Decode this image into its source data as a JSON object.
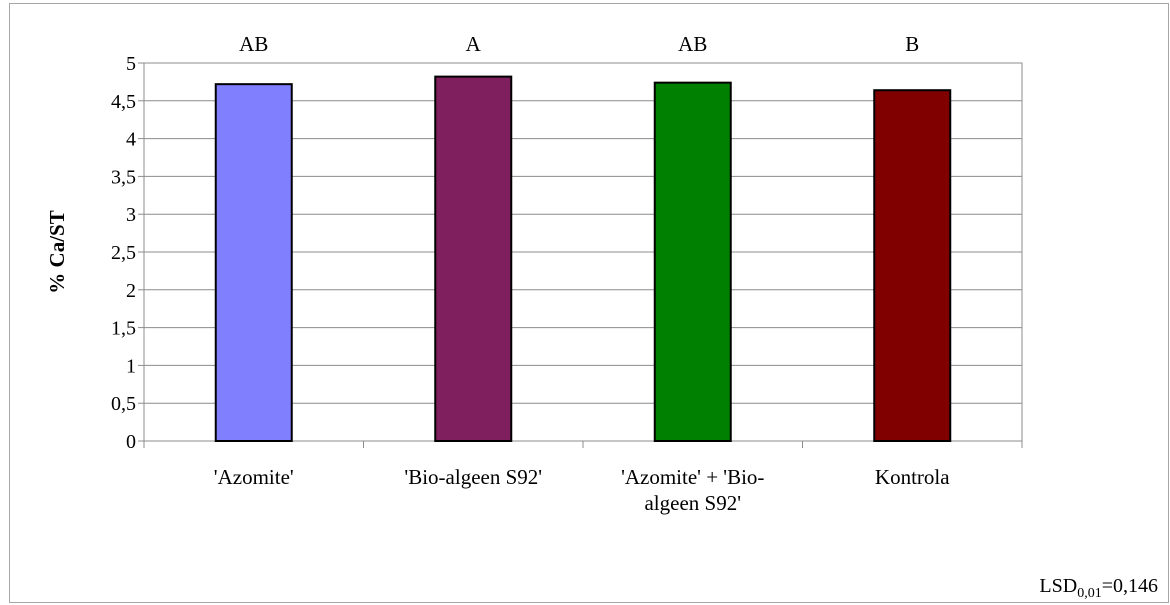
{
  "chart_data": {
    "type": "bar",
    "categories": [
      "'Azomite'",
      "'Bio-algeen S92'",
      "'Azomite' + 'Bio-algeen S92'",
      "Kontrola"
    ],
    "category_label_lines": [
      [
        "'Azomite'"
      ],
      [
        "'Bio-algeen S92'"
      ],
      [
        "'Azomite' + 'Bio-",
        "algeen S92'"
      ],
      [
        "Kontrola"
      ]
    ],
    "values": [
      4.72,
      4.82,
      4.74,
      4.64
    ],
    "significance_letters": [
      "AB",
      "A",
      "AB",
      "B"
    ],
    "bar_colors": [
      "#8080ff",
      "#7f1f5e",
      "#008000",
      "#800000"
    ],
    "ylabel": "% Ca/ST",
    "xlabel": "",
    "ylim": [
      0,
      5
    ],
    "y_ticks": [
      "0",
      "0,5",
      "1",
      "1,5",
      "2",
      "2,5",
      "3",
      "3,5",
      "4",
      "4,5",
      "5"
    ],
    "grid": true,
    "annotation": {
      "prefix": "LSD",
      "subscript": "0,01",
      "suffix": "=0,146"
    }
  }
}
